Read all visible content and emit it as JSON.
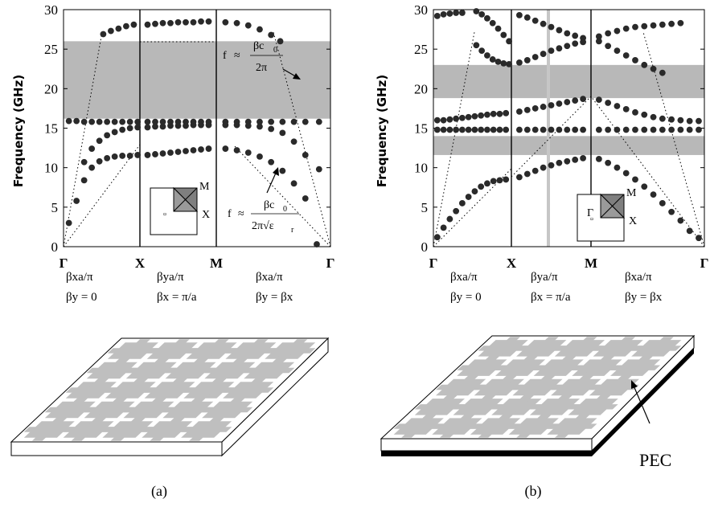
{
  "colors": {
    "bandgap": "#b8b8b8",
    "dot": "#2a2a2a",
    "slab_fill": "#ffffff",
    "patch": "#bfbfbf",
    "pec": "#000000"
  },
  "chart_data": [
    {
      "type": "scatter",
      "panel": "a",
      "caption": "(a)",
      "ylabel": "Frequency (GHz)",
      "ylim": [
        0,
        30
      ],
      "yticks": [
        "0",
        "5",
        "10",
        "15",
        "20",
        "25",
        "30"
      ],
      "x_segments": [
        {
          "label": "Γ",
          "conditions": [
            "βxa/π",
            "βy = 0"
          ]
        },
        {
          "label": "X",
          "conditions": [
            "βya/π",
            "βx = π/a"
          ]
        },
        {
          "label": "M",
          "conditions": [
            "βxa/π",
            "βy = βx"
          ]
        },
        {
          "label": "Γ",
          "conditions": []
        }
      ],
      "bandgaps": [
        [
          16.2,
          26.0
        ]
      ],
      "light_line_note": "f = βc0 / 2π",
      "dielectric_line_note": "f = βc0 / (2π√εr)",
      "series": [
        {
          "segment": 0,
          "x": [
            0.07,
            0.17,
            0.27,
            0.37,
            0.47,
            0.57,
            0.67,
            0.77,
            0.87,
            0.97
          ],
          "y": [
            3.0,
            5.8,
            8.4,
            10.0,
            10.8,
            11.2,
            11.4,
            11.5,
            11.5,
            11.6
          ]
        },
        {
          "segment": 0,
          "x": [
            0.07,
            0.17,
            0.27,
            0.37,
            0.47,
            0.57,
            0.67,
            0.77,
            0.87,
            0.97
          ],
          "y": [
            15.9,
            15.9,
            15.8,
            15.8,
            15.8,
            15.8,
            15.8,
            15.8,
            15.8,
            15.8
          ]
        },
        {
          "segment": 0,
          "x": [
            0.27,
            0.37,
            0.47,
            0.57,
            0.67,
            0.77,
            0.87,
            0.97
          ],
          "y": [
            10.7,
            12.4,
            13.4,
            14.1,
            14.5,
            14.8,
            15.0,
            15.1
          ]
        },
        {
          "segment": 0,
          "x": [
            0.52,
            0.62,
            0.72,
            0.82,
            0.92
          ],
          "y": [
            26.9,
            27.3,
            27.6,
            27.9,
            28.1
          ]
        },
        {
          "segment": 1,
          "x": [
            0.1,
            0.2,
            0.3,
            0.4,
            0.5,
            0.6,
            0.7,
            0.8,
            0.9
          ],
          "y": [
            11.6,
            11.7,
            11.8,
            11.9,
            12.0,
            12.1,
            12.2,
            12.3,
            12.4
          ]
        },
        {
          "segment": 1,
          "x": [
            0.1,
            0.2,
            0.3,
            0.4,
            0.5,
            0.6,
            0.7,
            0.8,
            0.9
          ],
          "y": [
            15.1,
            15.2,
            15.2,
            15.3,
            15.3,
            15.3,
            15.4,
            15.4,
            15.4
          ]
        },
        {
          "segment": 1,
          "x": [
            0.1,
            0.2,
            0.3,
            0.4,
            0.5,
            0.6,
            0.7,
            0.8,
            0.9
          ],
          "y": [
            15.8,
            15.8,
            15.8,
            15.8,
            15.8,
            15.8,
            15.8,
            15.8,
            15.8
          ]
        },
        {
          "segment": 1,
          "x": [
            0.1,
            0.2,
            0.3,
            0.4,
            0.5,
            0.6,
            0.7,
            0.8,
            0.9
          ],
          "y": [
            28.1,
            28.2,
            28.3,
            28.3,
            28.4,
            28.4,
            28.4,
            28.5,
            28.5
          ]
        },
        {
          "segment": 2,
          "x": [
            0.08,
            0.18,
            0.28,
            0.38,
            0.48,
            0.58,
            0.68,
            0.78,
            0.88
          ],
          "y": [
            12.4,
            12.2,
            11.9,
            11.4,
            10.7,
            9.6,
            8.0,
            6.1,
            0.3
          ]
        },
        {
          "segment": 2,
          "x": [
            0.08,
            0.18,
            0.28,
            0.38,
            0.48,
            0.58,
            0.68,
            0.78,
            0.9
          ],
          "y": [
            15.4,
            15.4,
            15.3,
            15.2,
            14.9,
            14.4,
            13.3,
            11.6,
            9.8
          ]
        },
        {
          "segment": 2,
          "x": [
            0.08,
            0.18,
            0.28,
            0.38,
            0.48,
            0.58,
            0.68,
            0.78,
            0.9
          ],
          "y": [
            15.8,
            15.8,
            15.8,
            15.8,
            15.8,
            15.8,
            15.8,
            15.8,
            15.8
          ]
        },
        {
          "segment": 2,
          "x": [
            0.08,
            0.18,
            0.28,
            0.38,
            0.48,
            0.56
          ],
          "y": [
            28.4,
            28.3,
            28.0,
            27.5,
            26.8,
            26.0
          ]
        }
      ]
    },
    {
      "type": "scatter",
      "panel": "b",
      "caption": "(b)",
      "ylabel": "Frequency (GHz)",
      "ylim": [
        0,
        30
      ],
      "yticks": [
        "0",
        "5",
        "10",
        "15",
        "20",
        "25",
        "30"
      ],
      "x_segments": [
        {
          "label": "Γ",
          "conditions": [
            "βxa/π",
            "βy = 0"
          ]
        },
        {
          "label": "X",
          "conditions": [
            "βya/π",
            "βx = π/a"
          ]
        },
        {
          "label": "M",
          "conditions": [
            "βxa/π",
            "βy = βx"
          ]
        },
        {
          "label": "Γ",
          "conditions": []
        }
      ],
      "bandgaps": [
        [
          18.8,
          23.0
        ],
        [
          11.6,
          14.0
        ]
      ],
      "series": [
        {
          "segment": 0,
          "x": [
            0.05,
            0.13,
            0.21,
            0.29,
            0.37,
            0.45,
            0.53,
            0.61,
            0.69,
            0.77,
            0.85,
            0.93
          ],
          "y": [
            1.2,
            2.4,
            3.5,
            4.5,
            5.5,
            6.3,
            7.0,
            7.6,
            8.0,
            8.3,
            8.4,
            8.5
          ]
        },
        {
          "segment": 0,
          "x": [
            0.05,
            0.13,
            0.21,
            0.29,
            0.37,
            0.45,
            0.53,
            0.61,
            0.69,
            0.77,
            0.85,
            0.93
          ],
          "y": [
            14.8,
            14.8,
            14.8,
            14.8,
            14.8,
            14.8,
            14.8,
            14.8,
            14.8,
            14.8,
            14.8,
            14.8
          ]
        },
        {
          "segment": 0,
          "x": [
            0.05,
            0.13,
            0.21,
            0.29,
            0.37,
            0.45,
            0.53,
            0.61,
            0.69,
            0.77,
            0.85,
            0.93
          ],
          "y": [
            16.0,
            16.0,
            16.1,
            16.2,
            16.3,
            16.4,
            16.5,
            16.6,
            16.7,
            16.8,
            16.8,
            16.9
          ]
        },
        {
          "segment": 0,
          "x": [
            0.05,
            0.13,
            0.21,
            0.29,
            0.37
          ],
          "y": [
            29.2,
            29.4,
            29.5,
            29.6,
            29.6
          ]
        },
        {
          "segment": 0,
          "x": [
            0.55,
            0.62,
            0.69,
            0.76,
            0.83,
            0.9,
            0.97
          ],
          "y": [
            25.5,
            24.8,
            24.2,
            23.7,
            23.4,
            23.2,
            23.1
          ]
        },
        {
          "segment": 0,
          "x": [
            0.55,
            0.62,
            0.69,
            0.76,
            0.83,
            0.9,
            0.97
          ],
          "y": [
            29.8,
            29.4,
            28.9,
            28.3,
            27.6,
            26.8,
            26.0
          ]
        },
        {
          "segment": 1,
          "x": [
            0.1,
            0.2,
            0.3,
            0.4,
            0.5,
            0.6,
            0.7,
            0.8,
            0.9
          ],
          "y": [
            8.8,
            9.2,
            9.6,
            10.0,
            10.3,
            10.6,
            10.8,
            11.0,
            11.2
          ]
        },
        {
          "segment": 1,
          "x": [
            0.1,
            0.2,
            0.3,
            0.4,
            0.5,
            0.6,
            0.7,
            0.8,
            0.9
          ],
          "y": [
            14.8,
            14.8,
            14.8,
            14.8,
            14.8,
            14.8,
            14.8,
            14.8,
            14.8
          ]
        },
        {
          "segment": 1,
          "x": [
            0.1,
            0.2,
            0.3,
            0.4,
            0.5,
            0.6,
            0.7,
            0.8,
            0.9
          ],
          "y": [
            17.1,
            17.3,
            17.5,
            17.7,
            17.9,
            18.1,
            18.3,
            18.5,
            18.7
          ]
        },
        {
          "segment": 1,
          "x": [
            0.1,
            0.2,
            0.3,
            0.4,
            0.5,
            0.6,
            0.7,
            0.8,
            0.9
          ],
          "y": [
            23.3,
            23.6,
            24.0,
            24.4,
            24.8,
            25.1,
            25.4,
            25.7,
            25.9
          ]
        },
        {
          "segment": 1,
          "x": [
            0.1,
            0.2,
            0.3,
            0.4,
            0.5,
            0.6,
            0.7,
            0.8,
            0.9
          ],
          "y": [
            29.3,
            29.0,
            28.6,
            28.2,
            27.8,
            27.4,
            27.0,
            26.7,
            26.4
          ]
        },
        {
          "segment": 2,
          "x": [
            0.07,
            0.15,
            0.23,
            0.31,
            0.39,
            0.47,
            0.55,
            0.63,
            0.71,
            0.79,
            0.87,
            0.95
          ],
          "y": [
            11.1,
            10.6,
            10.0,
            9.3,
            8.5,
            7.6,
            6.6,
            5.5,
            4.4,
            3.3,
            2.0,
            1.1
          ]
        },
        {
          "segment": 2,
          "x": [
            0.07,
            0.15,
            0.23,
            0.31,
            0.39,
            0.47,
            0.55,
            0.63,
            0.71,
            0.79,
            0.87,
            0.95
          ],
          "y": [
            14.8,
            14.8,
            14.8,
            14.8,
            14.8,
            14.8,
            14.8,
            14.8,
            14.8,
            14.8,
            14.8,
            14.8
          ]
        },
        {
          "segment": 2,
          "x": [
            0.07,
            0.15,
            0.23,
            0.31,
            0.39,
            0.47,
            0.55,
            0.63,
            0.71,
            0.79,
            0.87,
            0.95
          ],
          "y": [
            18.6,
            18.2,
            17.8,
            17.4,
            17.0,
            16.7,
            16.4,
            16.2,
            16.1,
            16.0,
            15.9,
            15.9
          ]
        },
        {
          "segment": 2,
          "x": [
            0.07,
            0.15,
            0.23,
            0.31,
            0.39,
            0.47,
            0.55,
            0.63,
            0.71,
            0.79
          ],
          "y": [
            26.6,
            27.0,
            27.3,
            27.6,
            27.8,
            27.9,
            28.0,
            28.1,
            28.2,
            28.3
          ]
        },
        {
          "segment": 2,
          "x": [
            0.07,
            0.15,
            0.23,
            0.31,
            0.39,
            0.47,
            0.55,
            0.63
          ],
          "y": [
            26.0,
            25.4,
            24.8,
            24.2,
            23.6,
            23.0,
            22.5,
            22.0
          ]
        }
      ]
    }
  ],
  "annotations": {
    "a_light": {
      "f": "f",
      "approx": "≈",
      "num": "βc",
      "sub0": "0",
      "den": "2π"
    },
    "a_diel": {
      "f": "f",
      "approx": "≈",
      "num": "βc",
      "sub0": "0",
      "den": "2π√ε",
      "subr": "r"
    },
    "inset_labels": {
      "m": "M",
      "x": "X",
      "g": "Γ"
    }
  },
  "slab": {
    "pec_label": "PEC"
  }
}
